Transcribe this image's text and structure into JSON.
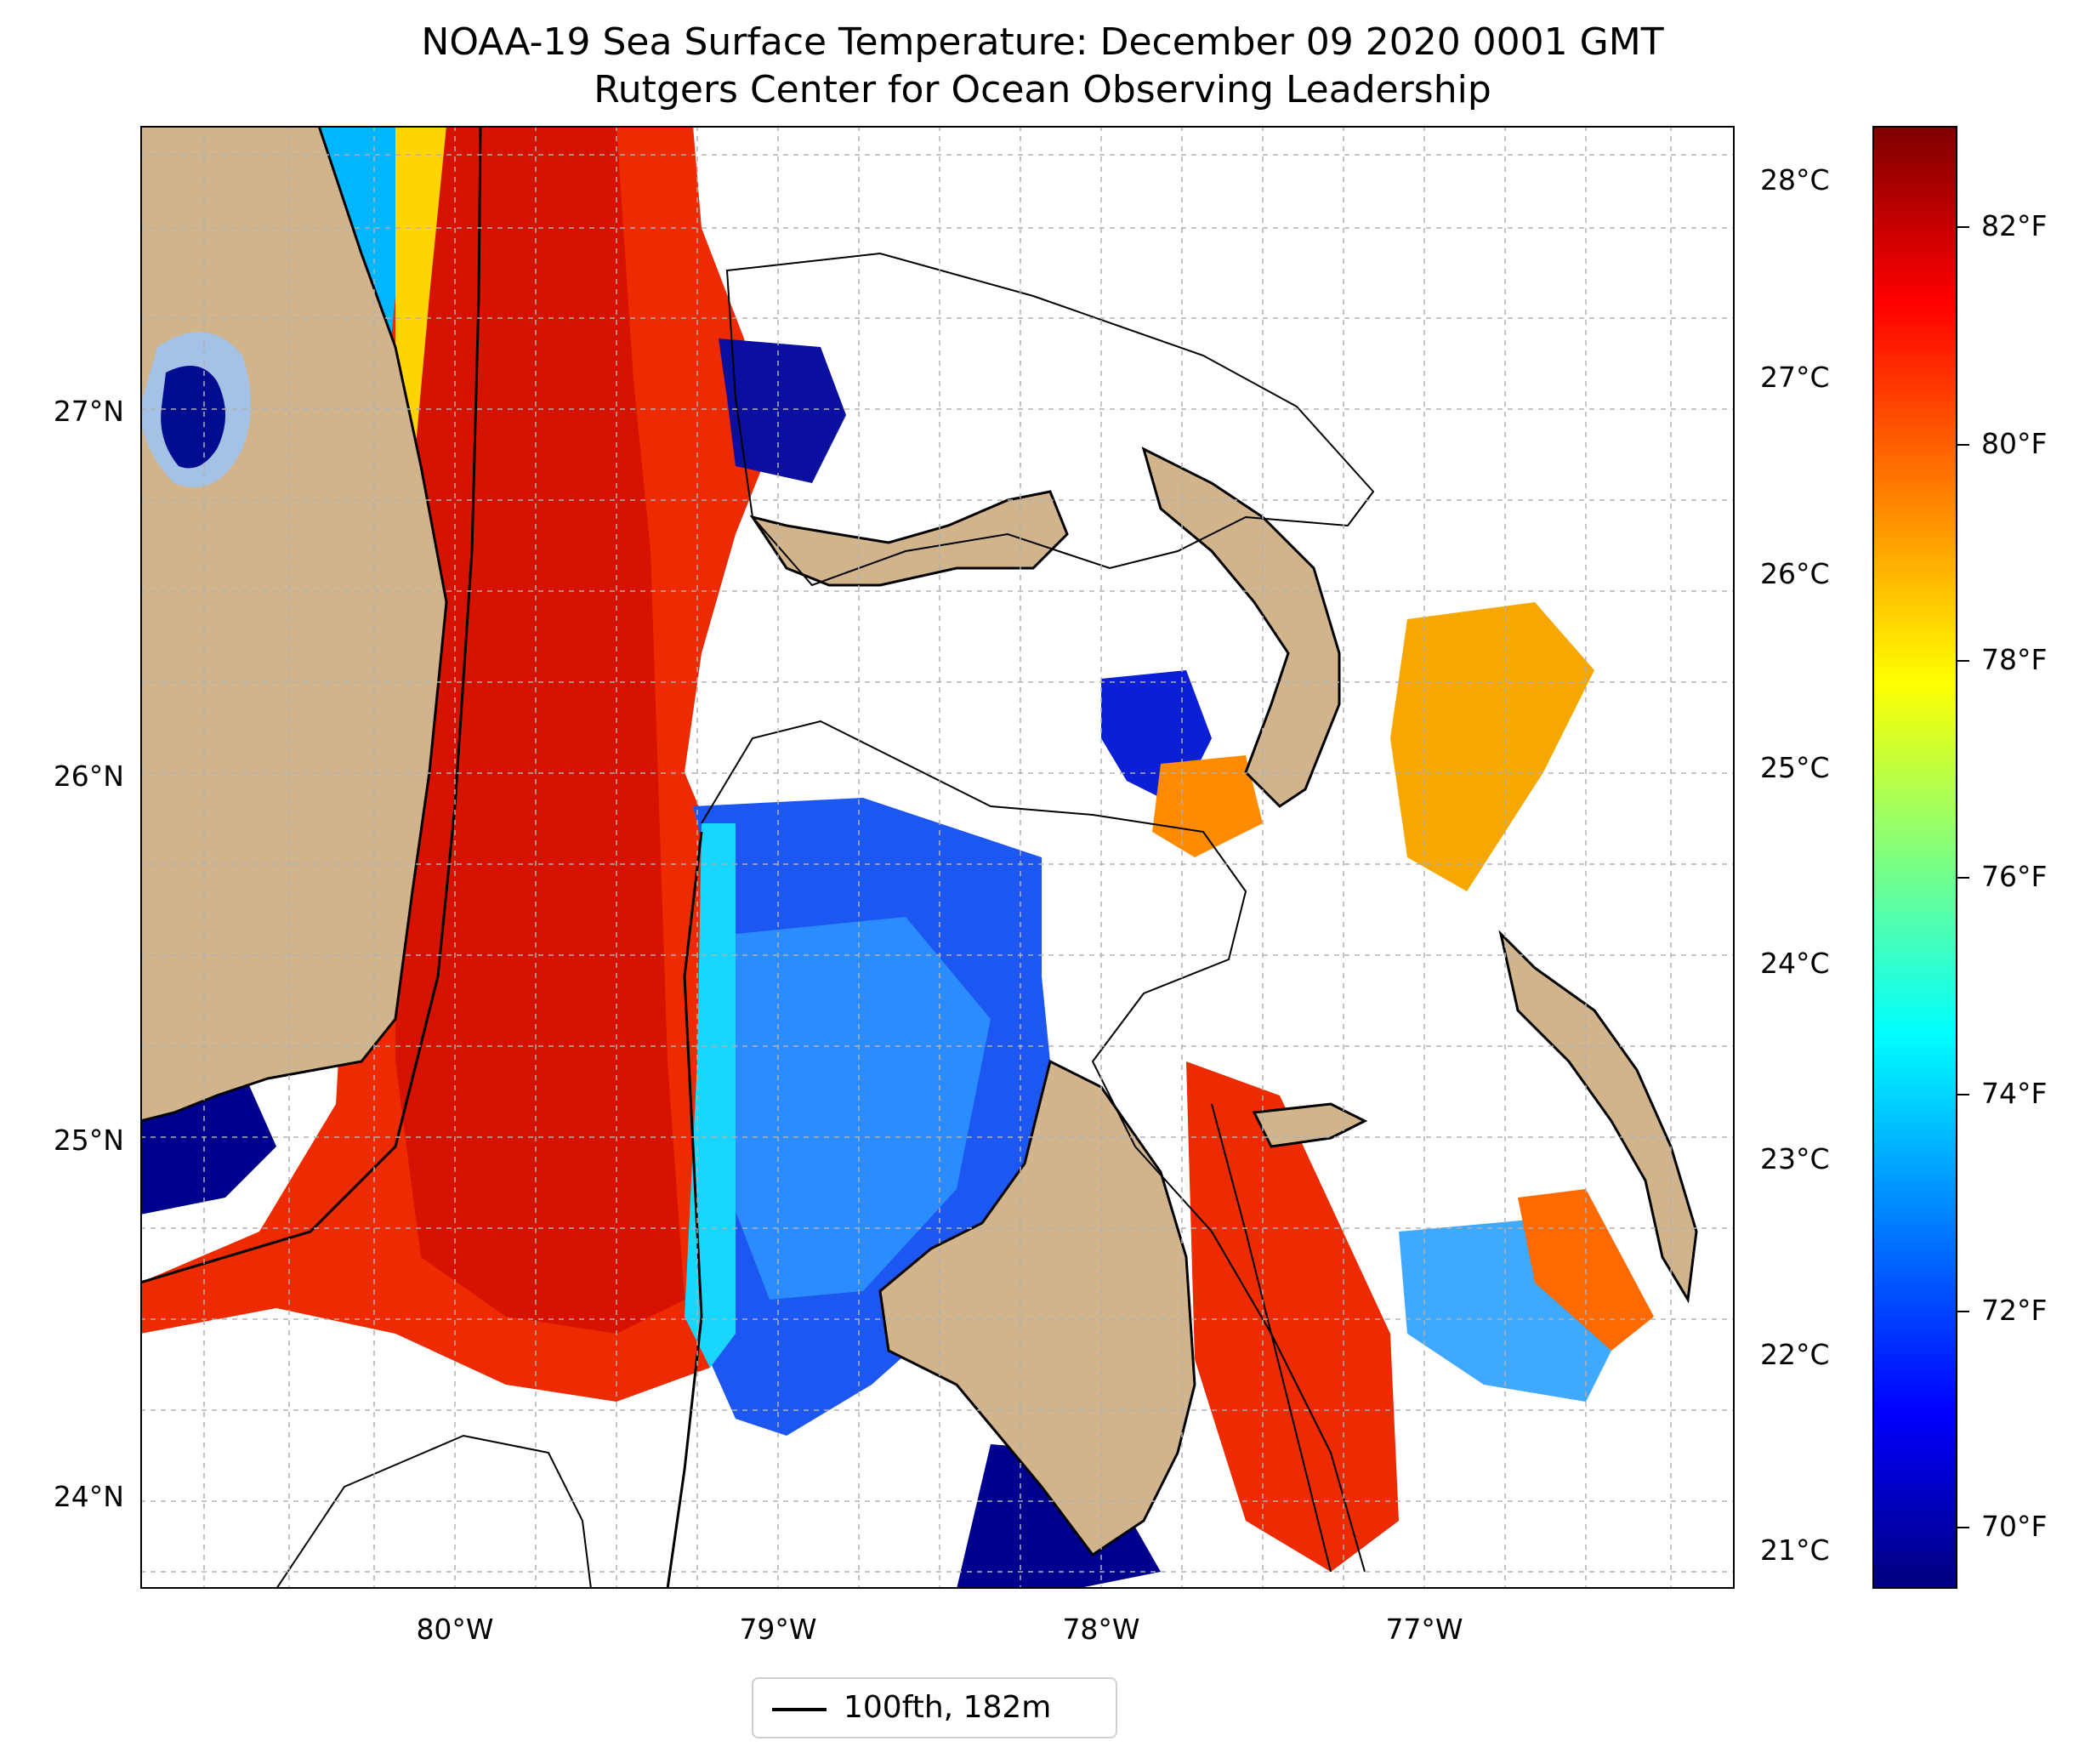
{
  "title": {
    "line1": "NOAA-19 Sea Surface Temperature: December 09 2020 0001 GMT",
    "line2": "Rutgers Center for Ocean Observing Leadership"
  },
  "map": {
    "lat_ticks": [
      "27°N",
      "26°N",
      "25°N",
      "24°N"
    ],
    "lon_ticks": [
      "80°W",
      "79°W",
      "78°W",
      "77°W"
    ],
    "celsius_ticks": [
      "28°C",
      "27°C",
      "26°C",
      "25°C",
      "24°C",
      "23°C",
      "22°C",
      "21°C"
    ],
    "lat_range": [
      23.75,
      27.8
    ],
    "lon_range": [
      -80.95,
      -76.0
    ]
  },
  "colorbar": {
    "ticks": [
      "82°F",
      "80°F",
      "78°F",
      "76°F",
      "74°F",
      "72°F",
      "70°F"
    ],
    "range_f": [
      69.3,
      83.2
    ],
    "colormap": "jet"
  },
  "legend": {
    "label": "100fth, 182m"
  },
  "colors": {
    "land": "#d2b48c",
    "cloud": "#ffffff",
    "lake": "#a4c2e6"
  }
}
